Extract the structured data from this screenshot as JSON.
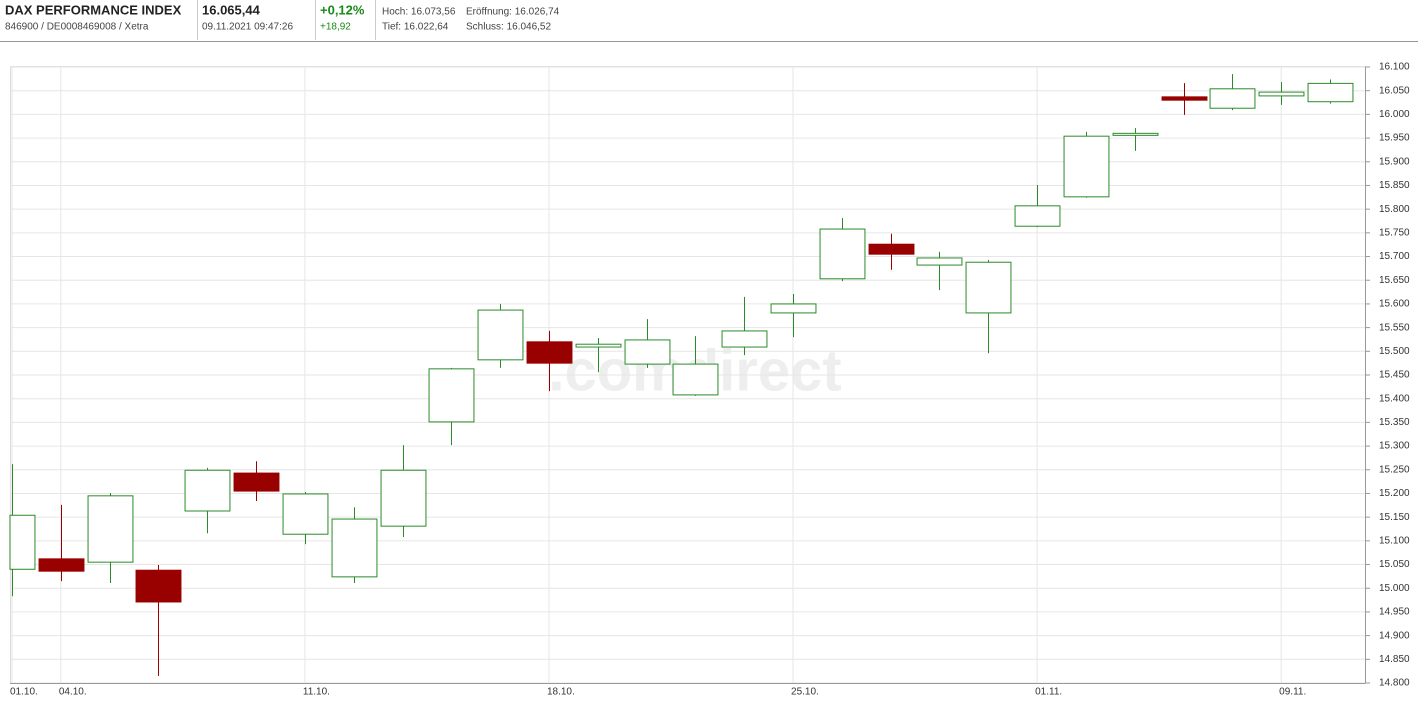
{
  "header": {
    "name": "DAX PERFORMANCE INDEX",
    "ids": "846900 / DE0008469008 / Xetra",
    "price": "16.065,44",
    "datetime": "09.11.2021 09:47:26",
    "change_pct": "+0,12%",
    "change_abs": "+18,92",
    "high": "Hoch: 16.073,56",
    "low": "Tief: 16.022,64",
    "open": "Eröffnung: 16.026,74",
    "close": "Schluss: 16.046,52"
  },
  "chart_data": {
    "type": "candlestick",
    "categories": [
      "01.10.",
      "04.10.",
      null,
      null,
      null,
      null,
      "11.10.",
      null,
      null,
      null,
      null,
      "18.10.",
      null,
      null,
      null,
      null,
      "25.10.",
      null,
      null,
      null,
      null,
      "01.11.",
      null,
      null,
      null,
      null,
      "09.11.",
      null
    ],
    "open": [
      15040,
      15062,
      15055,
      15038,
      15163,
      15243,
      15114,
      15024,
      15131,
      15351,
      15482,
      15520,
      15509,
      15473,
      15408,
      15509,
      15581,
      15653,
      15726,
      15682,
      15581,
      15764,
      15826,
      15958,
      16037,
      16013,
      16039,
      16026.74
    ],
    "high": [
      15262,
      15176,
      15201,
      15049,
      15254,
      15268,
      15203,
      15171,
      15302,
      15465,
      15600,
      15543,
      15528,
      15568,
      15532,
      15615,
      15621,
      15781,
      15748,
      15710,
      15693,
      15851,
      15963,
      15971,
      16066,
      16085,
      16068,
      16073.56
    ],
    "low": [
      14983,
      15015,
      15011,
      14815,
      15116,
      15184,
      15093,
      15011,
      15108,
      15302,
      15465,
      15416,
      15456,
      15465,
      15406,
      15492,
      15530,
      15648,
      15672,
      15629,
      15496,
      15762,
      15824,
      15923,
      15999,
      16009,
      16020,
      16022.64
    ],
    "close": [
      15154,
      15036,
      15195,
      14971,
      15249,
      15205,
      15199,
      15146,
      15249,
      15463,
      15587,
      15475,
      15515,
      15524,
      15473,
      15543,
      15600,
      15758,
      15705,
      15697,
      15688,
      15807,
      15954,
      15960,
      16030,
      16054,
      16047,
      16065.44
    ],
    "up_color": "#2a8a2a",
    "down_color": "#990000",
    "ylim": [
      14800,
      16100
    ],
    "yticks": [
      {
        "value": 14800,
        "label": "14.800"
      },
      {
        "value": 14850,
        "label": "14.850"
      },
      {
        "value": 14900,
        "label": "14.900"
      },
      {
        "value": 14950,
        "label": "14.950"
      },
      {
        "value": 15000,
        "label": "15.000"
      },
      {
        "value": 15050,
        "label": "15.050"
      },
      {
        "value": 15100,
        "label": "15.100"
      },
      {
        "value": 15150,
        "label": "15.150"
      },
      {
        "value": 15200,
        "label": "15.200"
      },
      {
        "value": 15250,
        "label": "15.250"
      },
      {
        "value": 15300,
        "label": "15.300"
      },
      {
        "value": 15350,
        "label": "15.350"
      },
      {
        "value": 15400,
        "label": "15.400"
      },
      {
        "value": 15450,
        "label": "15.450"
      },
      {
        "value": 15500,
        "label": "15.500"
      },
      {
        "value": 15550,
        "label": "15.550"
      },
      {
        "value": 15600,
        "label": "15.600"
      },
      {
        "value": 15650,
        "label": "15.650"
      },
      {
        "value": 15700,
        "label": "15.700"
      },
      {
        "value": 15750,
        "label": "15.750"
      },
      {
        "value": 15800,
        "label": "15.800"
      },
      {
        "value": 15850,
        "label": "15.850"
      },
      {
        "value": 15900,
        "label": "15.900"
      },
      {
        "value": 15950,
        "label": "15.950"
      },
      {
        "value": 16000,
        "label": "16.000"
      },
      {
        "value": 16050,
        "label": "16.050"
      },
      {
        "value": 16100,
        "label": "16.100"
      }
    ],
    "grid": true,
    "watermark": ".comdirect"
  }
}
